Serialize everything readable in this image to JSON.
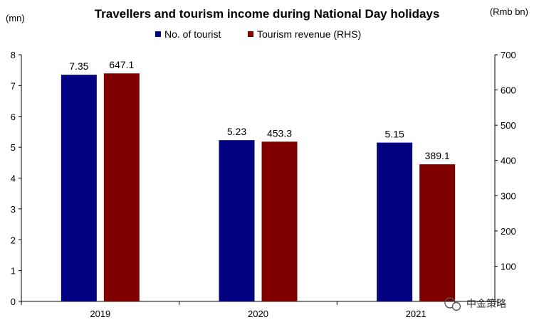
{
  "chart_data": {
    "type": "bar",
    "title": "Travellers and tourism income during National Day holidays",
    "left_unit": "(mn)",
    "right_unit": "(Rmb bn)",
    "categories": [
      "2019",
      "2020",
      "2021"
    ],
    "series": [
      {
        "name": "No. of tourist",
        "axis": "left",
        "color": "#000080",
        "values": [
          7.35,
          5.23,
          5.15
        ],
        "labels": [
          "7.35",
          "5.23",
          "5.15"
        ]
      },
      {
        "name": "Tourism revenue (RHS)",
        "axis": "right",
        "color": "#800000",
        "values": [
          647.1,
          453.3,
          389.1
        ],
        "labels": [
          "647.1",
          "453.3",
          "389.1"
        ]
      }
    ],
    "y_left": {
      "min": 0,
      "max": 8,
      "ticks": [
        "0",
        "1",
        "2",
        "3",
        "4",
        "5",
        "6",
        "7",
        "8"
      ]
    },
    "y_right": {
      "min": 0,
      "max": 700,
      "ticks": [
        "100",
        "200",
        "300",
        "400",
        "500",
        "600",
        "700"
      ]
    },
    "legend_position": "top-center",
    "grid": false
  },
  "watermark": {
    "text": "中金策略",
    "icon": "wechat-icon"
  }
}
